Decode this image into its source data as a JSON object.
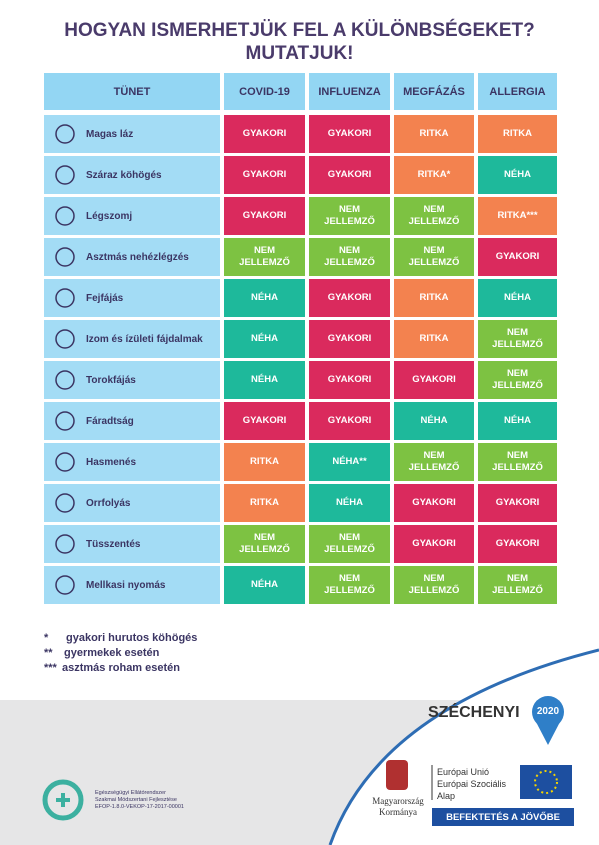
{
  "header": {
    "title_line1": "HOGYAN ISMERHETJÜK FEL A KÜLÖNBSÉGEKET?",
    "title_line2": "MUTATJUK!"
  },
  "table": {
    "columns": [
      "TÜNET",
      "COVID-19",
      "INFLUENZA",
      "MEGFÁZÁS",
      "ALLERGIA"
    ],
    "rows": [
      {
        "symptom": "Magas láz",
        "cells": [
          {
            "text": "GYAKORI",
            "color": "#da2a5d"
          },
          {
            "text": "GYAKORI",
            "color": "#da2a5d"
          },
          {
            "text": "RITKA",
            "color": "#f3824f"
          },
          {
            "text": "RITKA",
            "color": "#f3824f"
          }
        ]
      },
      {
        "symptom": "Száraz köhögés",
        "cells": [
          {
            "text": "GYAKORI",
            "color": "#da2a5d"
          },
          {
            "text": "GYAKORI",
            "color": "#da2a5d"
          },
          {
            "text": "RITKA*",
            "color": "#f3824f"
          },
          {
            "text": "NÉHA",
            "color": "#1eb99b"
          }
        ]
      },
      {
        "symptom": "Légszomj",
        "cells": [
          {
            "text": "GYAKORI",
            "color": "#da2a5d"
          },
          {
            "text": "NEM JELLEMZŐ",
            "color": "#7dc242"
          },
          {
            "text": "NEM JELLEMZŐ",
            "color": "#7dc242"
          },
          {
            "text": "RITKA***",
            "color": "#f3824f"
          }
        ]
      },
      {
        "symptom": "Asztmás nehézlégzés",
        "cells": [
          {
            "text": "NEM JELLEMZŐ",
            "color": "#7dc242"
          },
          {
            "text": "NEM JELLEMZŐ",
            "color": "#7dc242"
          },
          {
            "text": "NEM JELLEMZŐ",
            "color": "#7dc242"
          },
          {
            "text": "GYAKORI",
            "color": "#da2a5d"
          }
        ]
      },
      {
        "symptom": "Fejfájás",
        "cells": [
          {
            "text": "NÉHA",
            "color": "#1eb99b"
          },
          {
            "text": "GYAKORI",
            "color": "#da2a5d"
          },
          {
            "text": "RITKA",
            "color": "#f3824f"
          },
          {
            "text": "NÉHA",
            "color": "#1eb99b"
          }
        ]
      },
      {
        "symptom": "Izom és ízületi fájdalmak",
        "cells": [
          {
            "text": "NÉHA",
            "color": "#1eb99b"
          },
          {
            "text": "GYAKORI",
            "color": "#da2a5d"
          },
          {
            "text": "RITKA",
            "color": "#f3824f"
          },
          {
            "text": "NEM JELLEMZŐ",
            "color": "#7dc242"
          }
        ]
      },
      {
        "symptom": "Torokfájás",
        "cells": [
          {
            "text": "NÉHA",
            "color": "#1eb99b"
          },
          {
            "text": "GYAKORI",
            "color": "#da2a5d"
          },
          {
            "text": "GYAKORI",
            "color": "#da2a5d"
          },
          {
            "text": "NEM JELLEMZŐ",
            "color": "#7dc242"
          }
        ]
      },
      {
        "symptom": "Fáradtság",
        "cells": [
          {
            "text": "GYAKORI",
            "color": "#da2a5d"
          },
          {
            "text": "GYAKORI",
            "color": "#da2a5d"
          },
          {
            "text": "NÉHA",
            "color": "#1eb99b"
          },
          {
            "text": "NÉHA",
            "color": "#1eb99b"
          }
        ]
      },
      {
        "symptom": "Hasmenés",
        "cells": [
          {
            "text": "RITKA",
            "color": "#f3824f"
          },
          {
            "text": "NÉHA**",
            "color": "#1eb99b"
          },
          {
            "text": "NEM JELLEMZŐ",
            "color": "#7dc242"
          },
          {
            "text": "NEM JELLEMZŐ",
            "color": "#7dc242"
          }
        ]
      },
      {
        "symptom": "Orrfolyás",
        "cells": [
          {
            "text": "RITKA",
            "color": "#f3824f"
          },
          {
            "text": "NÉHA",
            "color": "#1eb99b"
          },
          {
            "text": "GYAKORI",
            "color": "#da2a5d"
          },
          {
            "text": "GYAKORI",
            "color": "#da2a5d"
          }
        ]
      },
      {
        "symptom": "Tüsszentés",
        "cells": [
          {
            "text": "NEM JELLEMZŐ",
            "color": "#7dc242"
          },
          {
            "text": "NEM JELLEMZŐ",
            "color": "#7dc242"
          },
          {
            "text": "GYAKORI",
            "color": "#da2a5d"
          },
          {
            "text": "GYAKORI",
            "color": "#da2a5d"
          }
        ]
      },
      {
        "symptom": "Mellkasi nyomás",
        "cells": [
          {
            "text": "NÉHA",
            "color": "#1eb99b"
          },
          {
            "text": "NEM JELLEMZŐ",
            "color": "#7dc242"
          },
          {
            "text": "NEM JELLEMZŐ",
            "color": "#7dc242"
          },
          {
            "text": "NEM JELLEMZŐ",
            "color": "#7dc242"
          }
        ]
      }
    ]
  },
  "footnotes": [
    {
      "mark": "*",
      "text": "gyakori hurutos köhögés"
    },
    {
      "mark": "**",
      "text": "gyermekek esetén"
    },
    {
      "mark": "***",
      "text": "asztmás roham esetén"
    }
  ],
  "footer": {
    "project_line1": "Egészségügyi Ellátórendszer",
    "project_line2": "Szakmai Módszertani Fejlesztése",
    "project_code": "EFOP-1.8.0-VEKOP-17-2017-00001",
    "szechenyi": "SZÉCHENYI",
    "year": "2020",
    "gov_line1": "Magyarország",
    "gov_line2": "Kormánya",
    "eu_line1": "Európai Unió",
    "eu_line2": "Európai Szociális",
    "eu_line3": "Alap",
    "slogan": "BEFEKTETÉS A JÖVŐBE"
  }
}
